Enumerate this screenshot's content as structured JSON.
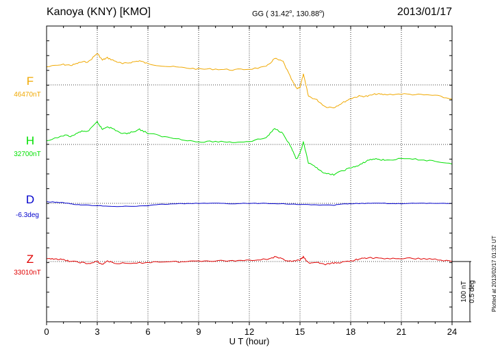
{
  "header": {
    "title": "Kanoya (KNY)  [KMO]",
    "coords_prefix": "GG ( 31.42",
    "coords_mid": ", 130.88",
    "coords_suffix": ")",
    "date": "2013/01/17"
  },
  "chart_data": {
    "type": "line",
    "xlabel": "U T (hour)",
    "xlim": [
      0,
      24
    ],
    "xticks": [
      0,
      3,
      6,
      9,
      12,
      15,
      18,
      21,
      24
    ],
    "grid": true,
    "series": [
      {
        "name": "F",
        "baseline": "46470nT",
        "color": "#f0a800",
        "x": [
          0,
          1,
          1.5,
          2,
          2.5,
          3,
          3.3,
          3.6,
          4,
          4.5,
          5,
          5.5,
          6,
          7,
          8,
          9,
          10,
          11,
          12,
          13,
          13.5,
          14,
          14.5,
          14.8,
          15,
          15.2,
          15.5,
          16,
          16.5,
          17,
          17.5,
          18,
          18.5,
          19,
          19.5,
          20,
          21,
          22,
          23,
          24
        ],
        "y": [
          48,
          54,
          52,
          60,
          62,
          84,
          66,
          72,
          64,
          56,
          60,
          64,
          56,
          50,
          46,
          42,
          42,
          40,
          42,
          48,
          70,
          62,
          14,
          -10,
          -6,
          28,
          -30,
          -40,
          -58,
          -60,
          -48,
          -36,
          -30,
          -30,
          -24,
          -26,
          -24,
          -26,
          -28,
          -38
        ]
      },
      {
        "name": "H",
        "baseline": "32700nT",
        "color": "#00e000",
        "x": [
          0,
          1,
          1.5,
          2,
          2.5,
          3,
          3.3,
          3.6,
          4,
          4.5,
          5,
          5.5,
          6,
          7,
          8,
          9,
          10,
          11,
          12,
          13,
          13.5,
          14,
          14.5,
          14.8,
          15,
          15.2,
          15.5,
          16,
          16.5,
          17,
          17.5,
          18,
          18.5,
          19,
          19.5,
          20,
          21,
          22,
          23,
          24
        ],
        "y": [
          8,
          24,
          22,
          34,
          36,
          60,
          40,
          48,
          40,
          28,
          32,
          40,
          30,
          20,
          14,
          6,
          8,
          6,
          8,
          18,
          42,
          30,
          -10,
          -40,
          -24,
          6,
          -50,
          -62,
          -78,
          -80,
          -70,
          -62,
          -56,
          -42,
          -38,
          -42,
          -38,
          -40,
          -44,
          -52
        ]
      },
      {
        "name": "D",
        "baseline": "-6.3deg",
        "color": "#0000cc",
        "x": [
          0,
          0.5,
          1,
          1.5,
          2,
          3,
          4,
          5,
          6,
          7,
          8,
          9,
          10,
          11,
          12,
          13,
          14,
          15,
          16,
          17,
          17.5,
          18,
          19,
          20,
          21,
          22,
          23,
          24
        ],
        "y": [
          4,
          3,
          2,
          -2,
          -4,
          -6,
          -8,
          -8,
          -6,
          -2,
          -1,
          0,
          0,
          -1,
          0,
          0,
          -1,
          -3,
          -4,
          -5,
          -2,
          -1,
          0,
          0,
          -1,
          0,
          0,
          0
        ]
      },
      {
        "name": "Z",
        "baseline": "33010nT",
        "color": "#e00000",
        "x": [
          0,
          0.5,
          1,
          1.5,
          2,
          2.5,
          3,
          3.3,
          3.6,
          4,
          5,
          6,
          7,
          8,
          9,
          10,
          11,
          12,
          13,
          13.5,
          14,
          14.5,
          15,
          15.2,
          15.5,
          16,
          16.5,
          17,
          17.5,
          18,
          18.5,
          19,
          20,
          21,
          22,
          23,
          24
        ],
        "y": [
          6,
          8,
          4,
          0,
          -2,
          -6,
          0,
          -8,
          2,
          -4,
          -6,
          -2,
          0,
          -1,
          2,
          2,
          2,
          4,
          6,
          12,
          6,
          0,
          4,
          12,
          -4,
          -2,
          -8,
          -4,
          -2,
          2,
          6,
          10,
          8,
          8,
          8,
          6,
          0
        ]
      }
    ]
  },
  "scale_bar": {
    "nt_label": "100 nT",
    "deg_label": "0.5 deg"
  },
  "footer": {
    "plotted": "Plotted at 2013/02/17 01:32 UT"
  }
}
